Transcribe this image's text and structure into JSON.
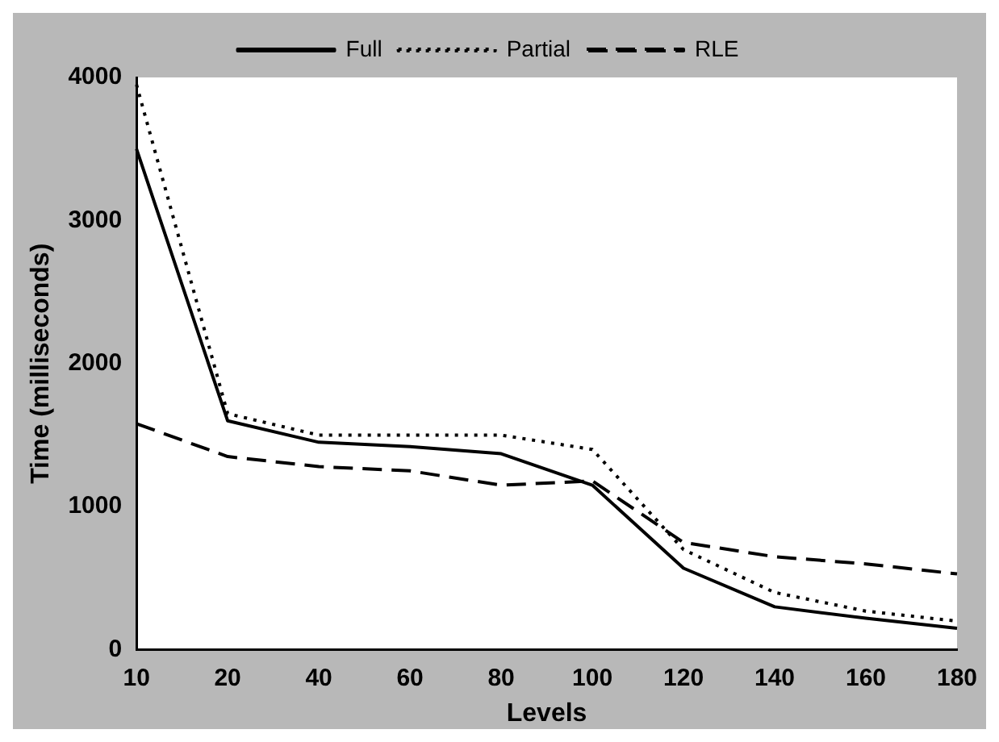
{
  "chart_data": {
    "type": "line",
    "xlabel": "Levels",
    "ylabel": "Time (milliseconds)",
    "categories": [
      "10",
      "20",
      "40",
      "60",
      "80",
      "100",
      "120",
      "140",
      "160",
      "180"
    ],
    "ylim": [
      0,
      4000
    ],
    "yticks": [
      0,
      1000,
      2000,
      3000,
      4000
    ],
    "grid": false,
    "legend": "top",
    "marker": "none",
    "series": [
      {
        "name": "Full",
        "color": "#000000",
        "line_style": "solid",
        "values": [
          3500,
          1600,
          1450,
          1420,
          1370,
          1150,
          570,
          300,
          220,
          150
        ]
      },
      {
        "name": "Partial",
        "color": "#000000",
        "line_style": "dotted",
        "values": [
          3950,
          1650,
          1500,
          1500,
          1500,
          1400,
          700,
          400,
          270,
          200
        ]
      },
      {
        "name": "RLE",
        "color": "#000000",
        "line_style": "dashed",
        "values": [
          1580,
          1350,
          1280,
          1250,
          1150,
          1180,
          750,
          650,
          600,
          530
        ]
      }
    ]
  }
}
